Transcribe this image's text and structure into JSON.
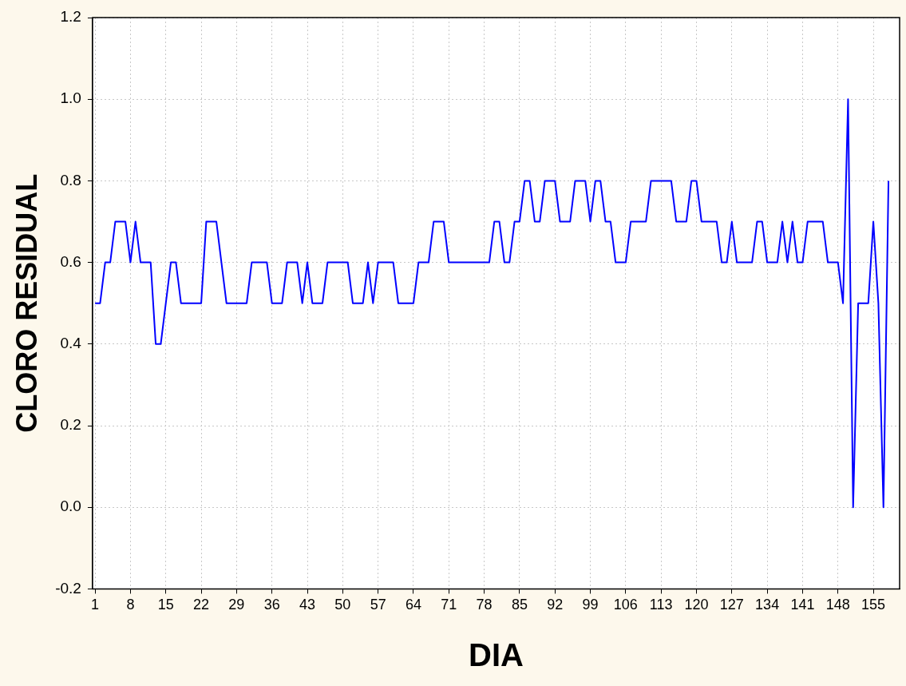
{
  "chart_data": {
    "type": "line",
    "xlabel": "DIA",
    "ylabel": "CLORO RESIDUAL",
    "x": [
      1,
      2,
      3,
      4,
      5,
      6,
      7,
      8,
      9,
      10,
      11,
      12,
      13,
      14,
      15,
      16,
      17,
      18,
      19,
      20,
      21,
      22,
      23,
      24,
      25,
      26,
      27,
      28,
      29,
      30,
      31,
      32,
      33,
      34,
      35,
      36,
      37,
      38,
      39,
      40,
      41,
      42,
      43,
      44,
      45,
      46,
      47,
      48,
      49,
      50,
      51,
      52,
      53,
      54,
      55,
      56,
      57,
      58,
      59,
      60,
      61,
      62,
      63,
      64,
      65,
      66,
      67,
      68,
      69,
      70,
      71,
      72,
      73,
      74,
      75,
      76,
      77,
      78,
      79,
      80,
      81,
      82,
      83,
      84,
      85,
      86,
      87,
      88,
      89,
      90,
      91,
      92,
      93,
      94,
      95,
      96,
      97,
      98,
      99,
      100,
      101,
      102,
      103,
      104,
      105,
      106,
      107,
      108,
      109,
      110,
      111,
      112,
      113,
      114,
      115,
      116,
      117,
      118,
      119,
      120,
      121,
      122,
      123,
      124,
      125,
      126,
      127,
      128,
      129,
      130,
      131,
      132,
      133,
      134,
      135,
      136,
      137,
      138,
      139,
      140,
      141,
      142,
      143,
      144,
      145,
      146,
      147,
      148,
      149,
      150,
      151,
      152,
      153,
      154,
      155,
      156,
      157,
      158
    ],
    "series": [
      {
        "color": "#0000ff",
        "values": [
          0.5,
          0.5,
          0.6,
          0.6,
          0.7,
          0.7,
          0.7,
          0.6,
          0.7,
          0.6,
          0.6,
          0.6,
          0.4,
          0.4,
          0.5,
          0.6,
          0.6,
          0.5,
          0.5,
          0.5,
          0.5,
          0.5,
          0.7,
          0.7,
          0.7,
          0.6,
          0.5,
          0.5,
          0.5,
          0.5,
          0.5,
          0.6,
          0.6,
          0.6,
          0.6,
          0.5,
          0.5,
          0.5,
          0.6,
          0.6,
          0.6,
          0.5,
          0.6,
          0.5,
          0.5,
          0.5,
          0.6,
          0.6,
          0.6,
          0.6,
          0.6,
          0.5,
          0.5,
          0.5,
          0.6,
          0.5,
          0.6,
          0.6,
          0.6,
          0.6,
          0.5,
          0.5,
          0.5,
          0.5,
          0.6,
          0.6,
          0.6,
          0.7,
          0.7,
          0.7,
          0.6,
          0.6,
          0.6,
          0.6,
          0.6,
          0.6,
          0.6,
          0.6,
          0.6,
          0.7,
          0.7,
          0.6,
          0.6,
          0.7,
          0.7,
          0.8,
          0.8,
          0.7,
          0.7,
          0.8,
          0.8,
          0.8,
          0.7,
          0.7,
          0.7,
          0.8,
          0.8,
          0.8,
          0.7,
          0.8,
          0.8,
          0.7,
          0.7,
          0.6,
          0.6,
          0.6,
          0.7,
          0.7,
          0.7,
          0.7,
          0.8,
          0.8,
          0.8,
          0.8,
          0.8,
          0.7,
          0.7,
          0.7,
          0.8,
          0.8,
          0.7,
          0.7,
          0.7,
          0.7,
          0.6,
          0.6,
          0.7,
          0.6,
          0.6,
          0.6,
          0.6,
          0.7,
          0.7,
          0.6,
          0.6,
          0.6,
          0.7,
          0.6,
          0.7,
          0.6,
          0.6,
          0.7,
          0.7,
          0.7,
          0.7,
          0.6,
          0.6,
          0.6,
          0.5,
          1.0,
          0.0,
          0.5,
          0.5,
          0.5,
          0.7,
          0.5,
          0.0,
          0.8
        ]
      }
    ],
    "xlim": [
      0.5,
      160.2
    ],
    "xticks": [
      1,
      8,
      15,
      22,
      29,
      36,
      43,
      50,
      57,
      64,
      71,
      78,
      85,
      92,
      99,
      106,
      113,
      120,
      127,
      134,
      141,
      148,
      155
    ],
    "ylim": [
      -0.2,
      1.2
    ],
    "yticks": [
      -0.2,
      {
        "value": 0,
        "label": "0.0"
      },
      0.2,
      0.4,
      0.6,
      0.8,
      {
        "value": 1,
        "label": "1.0"
      },
      1.2
    ],
    "grid": true,
    "legend": false,
    "marker": "none",
    "line_style": "solid"
  }
}
